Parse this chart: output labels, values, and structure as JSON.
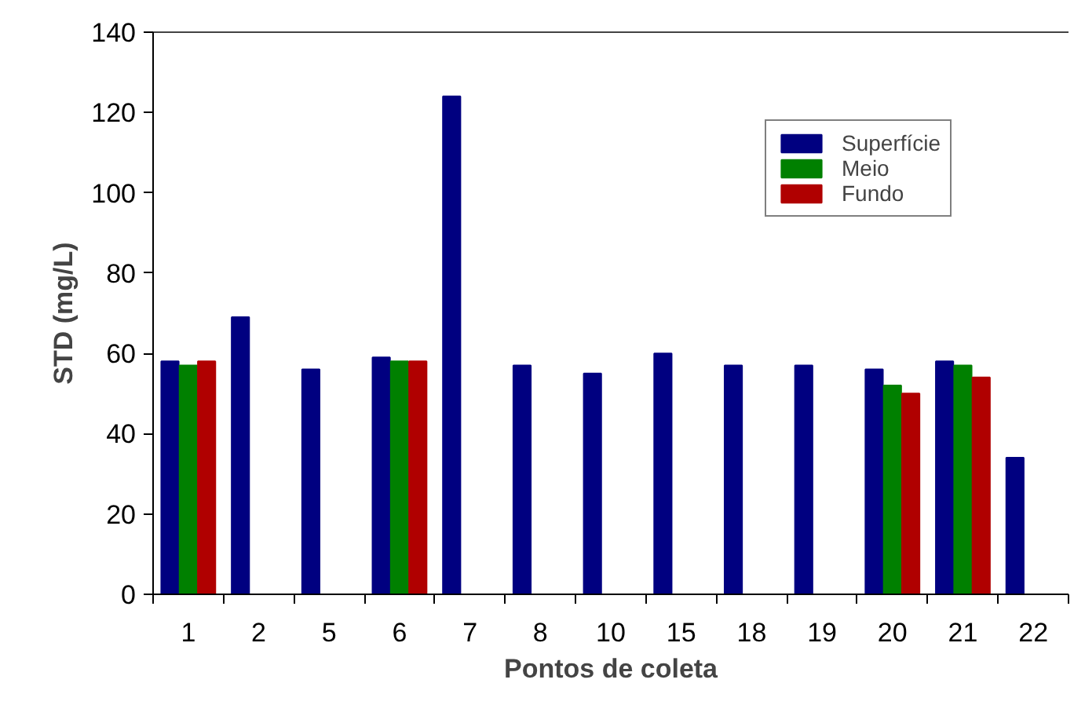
{
  "chart_data": {
    "type": "bar",
    "xlabel": "Pontos de coleta",
    "ylabel": "STD (mg/L)",
    "categories": [
      "1",
      "2",
      "5",
      "6",
      "7",
      "8",
      "10",
      "15",
      "18",
      "19",
      "20",
      "21",
      "22"
    ],
    "series": [
      {
        "name": "Superfície",
        "color": "#000080",
        "values": [
          58,
          69,
          56,
          59,
          124,
          57,
          55,
          60,
          57,
          57,
          56,
          58,
          34
        ]
      },
      {
        "name": "Meio",
        "color": "#008000",
        "values": [
          57,
          null,
          null,
          58,
          null,
          null,
          null,
          null,
          null,
          null,
          52,
          57,
          null
        ]
      },
      {
        "name": "Fundo",
        "color": "#b00000",
        "values": [
          58,
          null,
          null,
          58,
          null,
          null,
          null,
          null,
          null,
          null,
          50,
          54,
          null
        ]
      }
    ],
    "ylim": [
      0,
      140
    ],
    "yticks": [
      0,
      20,
      40,
      60,
      80,
      100,
      120,
      140
    ],
    "grid": false,
    "legend": "top right"
  }
}
